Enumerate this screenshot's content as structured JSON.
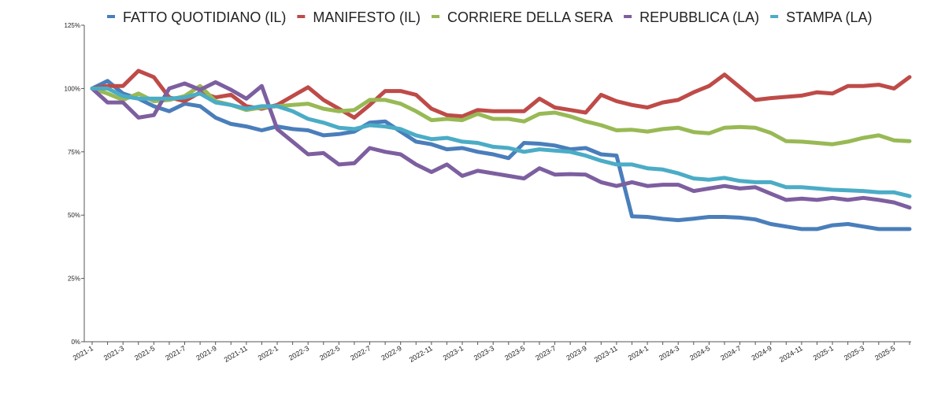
{
  "chart_data": {
    "type": "line",
    "title": "",
    "xlabel": "",
    "ylabel": "",
    "ylim": [
      0,
      125
    ],
    "grid": false,
    "legend_position": "top",
    "y_ticks": [
      "0%",
      "25%",
      "50%",
      "75%",
      "100%",
      "125%"
    ],
    "y_tick_values": [
      0,
      25,
      50,
      75,
      100,
      125
    ],
    "x_tick_labels": [
      "2021-1",
      "2021-3",
      "2021-5",
      "2021-7",
      "2021-9",
      "2021-11",
      "2022-1",
      "2022-3",
      "2022-5",
      "2022-7",
      "2022-9",
      "2022-11",
      "2023-1",
      "2023-3",
      "2023-5",
      "2023-7",
      "2023-9",
      "2023-11",
      "2024-1",
      "2024-3",
      "2024-5",
      "2024-7",
      "2024-9",
      "2024-11",
      "2025-1",
      "2025-3",
      "2025-5"
    ],
    "categories": [
      "2021-1",
      "2021-2",
      "2021-3",
      "2021-4",
      "2021-5",
      "2021-6",
      "2021-7",
      "2021-8",
      "2021-9",
      "2021-10",
      "2021-11",
      "2021-12",
      "2022-1",
      "2022-2",
      "2022-3",
      "2022-4",
      "2022-5",
      "2022-6",
      "2022-7",
      "2022-8",
      "2022-9",
      "2022-10",
      "2022-11",
      "2022-12",
      "2023-1",
      "2023-2",
      "2023-3",
      "2023-4",
      "2023-5",
      "2023-6",
      "2023-7",
      "2023-8",
      "2023-9",
      "2023-10",
      "2023-11",
      "2023-12",
      "2024-1",
      "2024-2",
      "2024-3",
      "2024-4",
      "2024-5",
      "2024-6",
      "2024-7",
      "2024-8",
      "2024-9",
      "2024-10",
      "2024-11",
      "2024-12",
      "2025-1",
      "2025-2",
      "2025-3",
      "2025-4",
      "2025-5",
      "2025-6"
    ],
    "series": [
      {
        "name": "FATTO QUOTIDIANO (IL)",
        "color": "#4a7ebb",
        "values": [
          100,
          103,
          98,
          96,
          93,
          91,
          94,
          93,
          88.5,
          86,
          85,
          83.5,
          85,
          84,
          83.5,
          81.5,
          82,
          83,
          86.5,
          87,
          83,
          79,
          78,
          76,
          76.5,
          75,
          74,
          72.5,
          78.5,
          78.2,
          77.5,
          76,
          76.5,
          74,
          73.5,
          49.5,
          49.3,
          48.5,
          48,
          48.6,
          49.3,
          49.3,
          49,
          48.3,
          46.5,
          45.5,
          44.5,
          44.5,
          46,
          46.5,
          45.5,
          44.5,
          44.5,
          44.5
        ]
      },
      {
        "name": "MANIFESTO (IL)",
        "color": "#be4b48",
        "values": [
          100,
          101,
          101,
          107,
          104.5,
          96.5,
          95,
          98.5,
          96.5,
          97.5,
          93,
          92,
          93.5,
          97,
          100.5,
          95.5,
          92,
          88.5,
          93.5,
          99,
          99,
          97.5,
          92,
          89.5,
          89,
          91.5,
          91,
          91,
          91,
          96,
          92.5,
          91.5,
          90.5,
          97.5,
          95,
          93.5,
          92.5,
          94.5,
          95.5,
          98.5,
          101,
          105.5,
          100.5,
          95.5,
          96.2,
          96.7,
          97.2,
          98.5,
          98,
          101,
          101,
          101.5,
          100,
          104.5
        ]
      },
      {
        "name": "CORRIERE DELLA SERA",
        "color": "#98b954",
        "values": [
          100,
          98,
          95.5,
          98,
          95,
          95.5,
          97,
          101,
          95,
          93.5,
          91.5,
          92.5,
          93,
          93.5,
          94,
          92,
          91,
          91.5,
          95.5,
          95.5,
          94,
          91,
          87.5,
          88,
          87.5,
          90,
          88,
          88,
          87,
          90,
          90.5,
          89,
          87,
          85.5,
          83.5,
          83.7,
          83,
          84,
          84.5,
          82.8,
          82.3,
          84.5,
          84.8,
          84.5,
          82.5,
          79.2,
          79,
          78.5,
          78,
          79,
          80.5,
          81.5,
          79.5,
          79.2
        ]
      },
      {
        "name": "REPUBBLICA (LA)",
        "color": "#7d5fa0",
        "values": [
          100,
          94.5,
          94.5,
          88.5,
          89.5,
          100,
          102,
          99.5,
          102.5,
          99.5,
          96,
          101,
          84,
          79,
          74,
          74.5,
          70,
          70.5,
          76.5,
          75,
          74,
          70,
          67,
          70,
          65.5,
          67.5,
          66.5,
          65.5,
          64.5,
          68.5,
          66,
          66.2,
          66,
          63,
          61.5,
          63,
          61.5,
          62,
          62,
          59.5,
          60.5,
          61.5,
          60.5,
          61,
          58.5,
          56,
          56.5,
          56,
          56.8,
          56,
          56.8,
          56,
          55,
          53
        ]
      },
      {
        "name": "STAMPA (LA)",
        "color": "#4bacc6",
        "values": [
          100,
          100,
          97,
          96,
          96,
          96,
          96.5,
          98,
          94.5,
          93.5,
          92,
          93,
          93,
          91,
          88,
          86.5,
          84.5,
          84,
          85.5,
          85,
          84,
          81.5,
          80,
          80.5,
          79,
          78.5,
          77,
          76.5,
          75,
          76,
          75.5,
          75,
          73.5,
          71.5,
          70,
          70,
          68.5,
          68,
          66.5,
          64.5,
          64,
          64.7,
          63.5,
          63,
          63,
          61,
          61,
          60.5,
          60,
          59.8,
          59.5,
          59,
          59,
          57.5
        ]
      }
    ]
  }
}
